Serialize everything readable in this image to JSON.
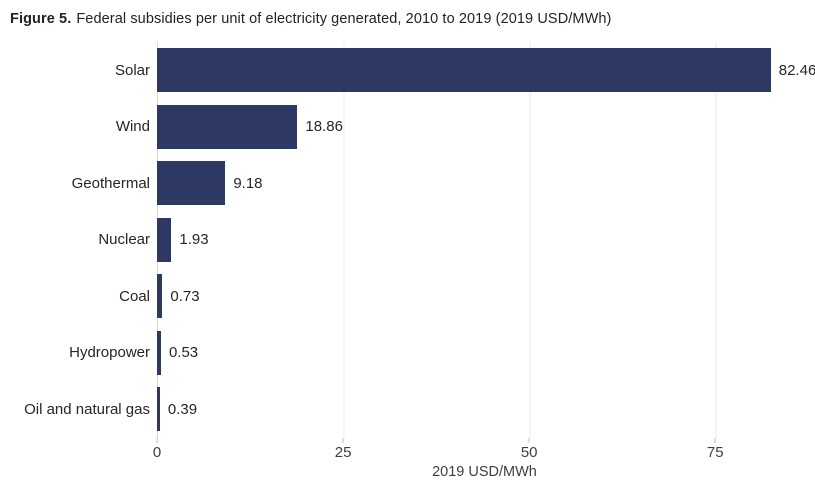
{
  "figure": {
    "label": "Figure 5.",
    "title": "Federal subsidies per unit of electricity generated, 2010 to 2019 (2019 USD/MWh)"
  },
  "chart_data": {
    "type": "bar",
    "orientation": "horizontal",
    "title": "Federal subsidies per unit of electricity generated, 2010 to 2019 (2019 USD/MWh)",
    "categories": [
      "Solar",
      "Wind",
      "Geothermal",
      "Nuclear",
      "Coal",
      "Hydropower",
      "Oil and natural gas"
    ],
    "values": [
      82.46,
      18.86,
      9.18,
      1.93,
      0.73,
      0.53,
      0.39
    ],
    "value_labels": [
      "82.46",
      "18.86",
      "9.18",
      "1.93",
      "0.73",
      "0.53",
      "0.39"
    ],
    "xlabel": "2019 USD/MWh",
    "ylabel": "",
    "xticks": [
      0,
      25,
      50,
      75
    ],
    "xlim": [
      0,
      88
    ],
    "grid": true,
    "legend": false,
    "bar_color": "#2d3964",
    "gridline_color": "#e8e8e8",
    "axis_line_color": "#d9d9d9",
    "tick_color": "#bfbfbf",
    "label_color": "#262626",
    "tick_label_color": "#404040"
  }
}
